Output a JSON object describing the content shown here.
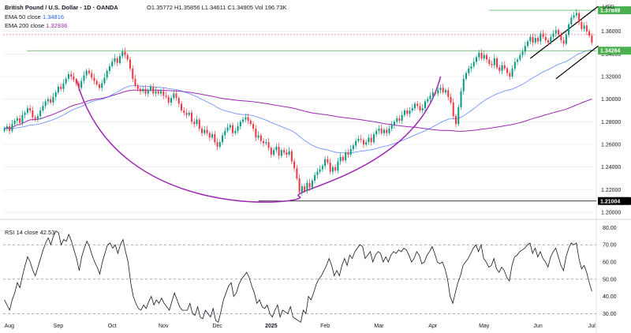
{
  "header": {
    "symbol_line": "British Pound / U.S. Dollar · 1D · OANDA",
    "ohlc": "O1.35772 H1.35856 L1.34611 C1.34905 Vol 196.73K",
    "ema50_label": "EMA 50 close",
    "ema50_value": "1.34816",
    "ema200_label": "EMA 200 close",
    "ema200_value": "1.32936",
    "rsi_label": "RSI 14 close",
    "rsi_value": "42.53",
    "currency": "USD"
  },
  "colors": {
    "up": "#089981",
    "down": "#f23645",
    "ema50": "#2962ff",
    "ema200": "#9c27b0",
    "cup": "#9c27b0",
    "channel": "#000000",
    "level": "#4caf50",
    "grid": "#e0e3eb"
  },
  "chart_data": [
    {
      "type": "candlestick",
      "title": "British Pound / U.S. Dollar · 1D · OANDA",
      "x_ticks": [
        "Aug",
        "Sep",
        "Oct",
        "Nov",
        "Dec",
        "2025",
        "Feb",
        "Mar",
        "Apr",
        "May",
        "Jun",
        "Jul"
      ],
      "y_ticks": [
        "1.36000",
        "1.34000",
        "1.32000",
        "1.30000",
        "1.28000",
        "1.26000",
        "1.24000",
        "1.22000",
        "1.20000"
      ],
      "ylim": [
        1.198,
        1.382
      ],
      "levels": [
        {
          "label": "1.37849",
          "value": 1.3785
        },
        {
          "label": "1.34284",
          "value": 1.3428
        },
        {
          "label": "1.21004",
          "value": 1.21
        }
      ],
      "closes": [
        1.274,
        1.276,
        1.272,
        1.278,
        1.281,
        1.283,
        1.279,
        1.286,
        1.288,
        1.292,
        1.29,
        1.284,
        1.282,
        1.285,
        1.29,
        1.294,
        1.298,
        1.3,
        1.297,
        1.302,
        1.306,
        1.311,
        1.309,
        1.314,
        1.318,
        1.322,
        1.32,
        1.317,
        1.314,
        1.31,
        1.316,
        1.321,
        1.325,
        1.323,
        1.319,
        1.316,
        1.313,
        1.31,
        1.314,
        1.319,
        1.325,
        1.329,
        1.333,
        1.336,
        1.332,
        1.338,
        1.342,
        1.339,
        1.335,
        1.327,
        1.318,
        1.312,
        1.309,
        1.307,
        1.309,
        1.305,
        1.308,
        1.311,
        1.305,
        1.307,
        1.305,
        1.307,
        1.303,
        1.302,
        1.297,
        1.301,
        1.305,
        1.301,
        1.296,
        1.29,
        1.288,
        1.286,
        1.288,
        1.28,
        1.278,
        1.282,
        1.274,
        1.27,
        1.273,
        1.27,
        1.266,
        1.269,
        1.262,
        1.258,
        1.262,
        1.268,
        1.272,
        1.275,
        1.277,
        1.27,
        1.272,
        1.276,
        1.28,
        1.282,
        1.284,
        1.281,
        1.278,
        1.274,
        1.266,
        1.268,
        1.263,
        1.261,
        1.262,
        1.257,
        1.251,
        1.255,
        1.258,
        1.25,
        1.255,
        1.253,
        1.251,
        1.254,
        1.245,
        1.239,
        1.23,
        1.218,
        1.223,
        1.219,
        1.226,
        1.222,
        1.228,
        1.233,
        1.236,
        1.238,
        1.241,
        1.247,
        1.244,
        1.236,
        1.24,
        1.237,
        1.245,
        1.249,
        1.246,
        1.253,
        1.251,
        1.256,
        1.259,
        1.263,
        1.265,
        1.264,
        1.26,
        1.262,
        1.266,
        1.262,
        1.269,
        1.272,
        1.274,
        1.27,
        1.273,
        1.27,
        1.274,
        1.277,
        1.28,
        1.283,
        1.281,
        1.286,
        1.29,
        1.287,
        1.29,
        1.292,
        1.296,
        1.294,
        1.29,
        1.292,
        1.298,
        1.3,
        1.303,
        1.306,
        1.305,
        1.308,
        1.31,
        1.306,
        1.308,
        1.302,
        1.297,
        1.285,
        1.278,
        1.293,
        1.307,
        1.318,
        1.323,
        1.327,
        1.329,
        1.333,
        1.337,
        1.341,
        1.336,
        1.339,
        1.335,
        1.331,
        1.33,
        1.336,
        1.328,
        1.325,
        1.33,
        1.327,
        1.323,
        1.32,
        1.327,
        1.333,
        1.335,
        1.339,
        1.342,
        1.347,
        1.351,
        1.355,
        1.35,
        1.354,
        1.351,
        1.358,
        1.355,
        1.352,
        1.35,
        1.355,
        1.358,
        1.361,
        1.357,
        1.352,
        1.349,
        1.357,
        1.366,
        1.372,
        1.374,
        1.376,
        1.368,
        1.362,
        1.365,
        1.36,
        1.356,
        1.35
      ]
    },
    {
      "type": "line",
      "title": "RSI 14 close",
      "y_ticks": [
        "80.00",
        "70.00",
        "60.00",
        "50.00",
        "40.00",
        "30.00"
      ],
      "ylim": [
        27,
        82
      ],
      "bands": [
        70,
        50,
        30
      ],
      "x_ticks": [
        "Aug",
        "Sep",
        "Oct",
        "Nov",
        "Dec",
        "2025",
        "Feb",
        "Mar",
        "Apr",
        "May",
        "Jun",
        "Jul"
      ],
      "rsi": [
        38,
        35,
        32,
        38,
        42,
        48,
        45,
        52,
        58,
        63,
        60,
        55,
        52,
        57,
        62,
        67,
        71,
        74,
        70,
        75,
        78,
        77,
        70,
        73,
        72,
        76,
        72,
        67,
        62,
        55,
        63,
        68,
        72,
        69,
        64,
        60,
        57,
        53,
        60,
        65,
        70,
        71,
        68,
        70,
        65,
        70,
        73,
        66,
        60,
        48,
        40,
        36,
        33,
        32,
        35,
        33,
        37,
        40,
        35,
        38,
        36,
        39,
        36,
        34,
        32,
        37,
        42,
        38,
        34,
        32,
        32,
        32,
        36,
        30,
        29,
        34,
        28,
        27,
        32,
        30,
        28,
        33,
        26,
        25,
        31,
        38,
        42,
        46,
        48,
        40,
        42,
        47,
        50,
        52,
        54,
        51,
        46,
        42,
        36,
        38,
        34,
        33,
        35,
        30,
        28,
        32,
        35,
        28,
        32,
        31,
        30,
        34,
        28,
        27,
        26,
        25,
        32,
        30,
        40,
        38,
        42,
        47,
        50,
        52,
        55,
        58,
        62,
        58,
        52,
        55,
        52,
        58,
        62,
        58,
        64,
        62,
        66,
        68,
        70,
        69,
        62,
        64,
        66,
        60,
        64,
        66,
        65,
        60,
        63,
        60,
        64,
        66,
        65,
        67,
        66,
        68,
        67,
        64,
        60,
        62,
        66,
        64,
        59,
        60,
        64,
        66,
        69,
        65,
        60,
        59,
        60,
        56,
        50,
        40,
        36,
        42,
        48,
        52,
        58,
        60,
        62,
        65,
        68,
        70,
        66,
        70,
        62,
        60,
        57,
        58,
        62,
        56,
        54,
        57,
        55,
        51,
        49,
        58,
        63,
        64,
        66,
        67,
        68,
        70,
        71,
        65,
        68,
        63,
        66,
        62,
        60,
        57,
        63,
        66,
        68,
        63,
        58,
        55,
        63,
        68,
        71,
        70,
        71,
        62,
        56,
        58,
        54,
        48,
        43
      ]
    }
  ]
}
